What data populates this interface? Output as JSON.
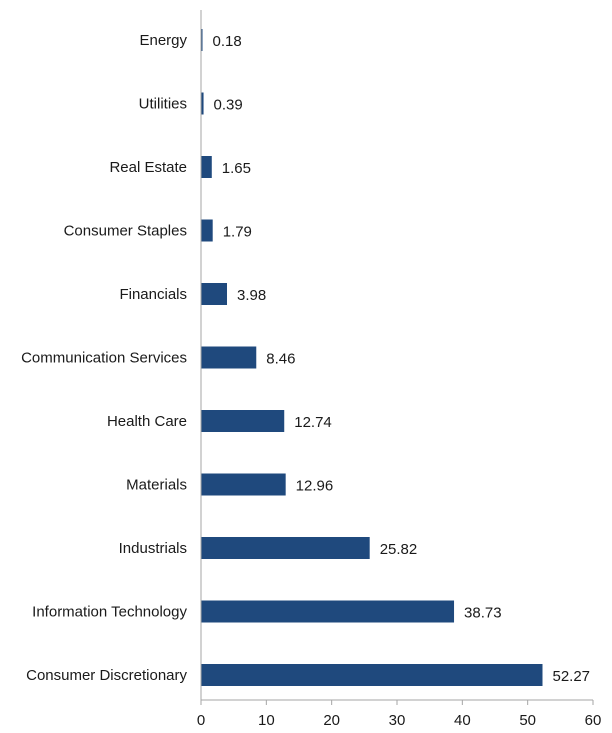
{
  "chart_data": {
    "type": "bar",
    "orientation": "horizontal",
    "title": "",
    "xlabel": "",
    "ylabel": "",
    "categories": [
      "Energy",
      "Utilities",
      "Real Estate",
      "Consumer Staples",
      "Financials",
      "Communication Services",
      "Health Care",
      "Materials",
      "Industrials",
      "Information Technology",
      "Consumer Discretionary"
    ],
    "values": [
      0.18,
      0.39,
      1.65,
      1.79,
      3.98,
      8.46,
      12.74,
      12.96,
      25.82,
      38.73,
      52.27
    ],
    "value_labels": [
      "0.18",
      "0.39",
      "1.65",
      "1.79",
      "3.98",
      "8.46",
      "12.74",
      "12.96",
      "25.82",
      "38.73",
      "52.27"
    ],
    "xlim": [
      0,
      60
    ],
    "xticks": [
      0,
      10,
      20,
      30,
      40,
      50,
      60
    ],
    "grid": false,
    "legend": "none",
    "bar_color": "#1f497d",
    "axis_color": "#a6a6a6"
  }
}
